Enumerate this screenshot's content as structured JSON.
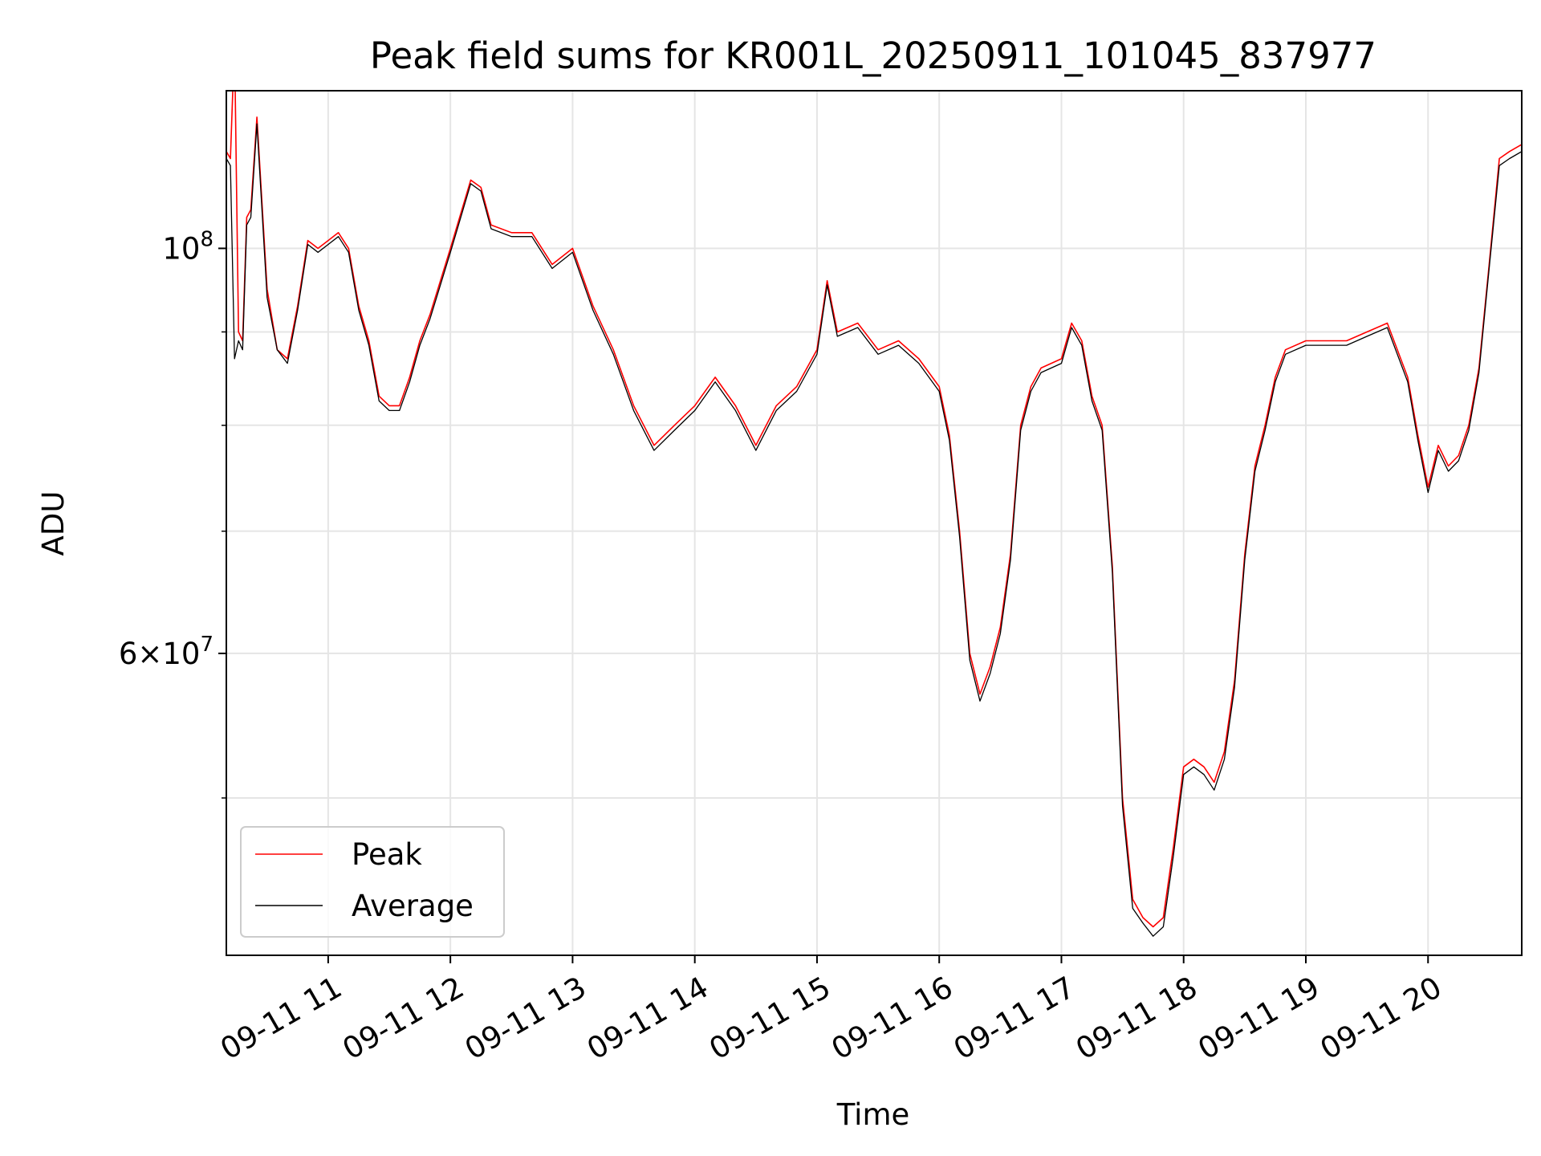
{
  "chart_data": {
    "type": "line",
    "title": "Peak field sums for KR001L_20250911_101045_837977",
    "xlabel": "Time",
    "ylabel": "ADU",
    "yscale": "log",
    "ylim": [
      41000000,
      122000000
    ],
    "xlim": [
      "09-11 10:10",
      "09-11 20:46"
    ],
    "grid": true,
    "legend_position": "lower-left",
    "x_ticks": [
      "09-11 11",
      "09-11 12",
      "09-11 13",
      "09-11 14",
      "09-11 15",
      "09-11 16",
      "09-11 17",
      "09-11 18",
      "09-11 19",
      "09-11 20"
    ],
    "y_ticks": [
      {
        "label_base": "10",
        "label_exp": "8",
        "label_prefix": "",
        "value": 100000000
      },
      {
        "label_base": "10",
        "label_exp": "7",
        "label_prefix": "6×",
        "value": 60000000
      }
    ],
    "y_minor_ticks": [
      50000000,
      70000000,
      80000000,
      90000000
    ],
    "series": [
      {
        "name": "Peak",
        "color": "#ff0000",
        "x": [
          "09-11 10:10",
          "09-11 10:12",
          "09-11 10:14",
          "09-11 10:16",
          "09-11 10:18",
          "09-11 10:20",
          "09-11 10:22",
          "09-11 10:25",
          "09-11 10:30",
          "09-11 10:35",
          "09-11 10:40",
          "09-11 10:45",
          "09-11 10:50",
          "09-11 10:55",
          "09-11 11:00",
          "09-11 11:05",
          "09-11 11:10",
          "09-11 11:15",
          "09-11 11:20",
          "09-11 11:25",
          "09-11 11:30",
          "09-11 11:35",
          "09-11 11:40",
          "09-11 11:45",
          "09-11 11:50",
          "09-11 12:00",
          "09-11 12:10",
          "09-11 12:15",
          "09-11 12:20",
          "09-11 12:30",
          "09-11 12:40",
          "09-11 12:50",
          "09-11 13:00",
          "09-11 13:10",
          "09-11 13:20",
          "09-11 13:30",
          "09-11 13:40",
          "09-11 13:50",
          "09-11 14:00",
          "09-11 14:10",
          "09-11 14:20",
          "09-11 14:30",
          "09-11 14:40",
          "09-11 14:50",
          "09-11 15:00",
          "09-11 15:05",
          "09-11 15:10",
          "09-11 15:20",
          "09-11 15:30",
          "09-11 15:40",
          "09-11 15:50",
          "09-11 16:00",
          "09-11 16:05",
          "09-11 16:10",
          "09-11 16:15",
          "09-11 16:20",
          "09-11 16:25",
          "09-11 16:30",
          "09-11 16:35",
          "09-11 16:40",
          "09-11 16:45",
          "09-11 16:50",
          "09-11 17:00",
          "09-11 17:05",
          "09-11 17:10",
          "09-11 17:15",
          "09-11 17:20",
          "09-11 17:25",
          "09-11 17:30",
          "09-11 17:35",
          "09-11 17:40",
          "09-11 17:45",
          "09-11 17:50",
          "09-11 17:55",
          "09-11 18:00",
          "09-11 18:05",
          "09-11 18:10",
          "09-11 18:15",
          "09-11 18:20",
          "09-11 18:25",
          "09-11 18:30",
          "09-11 18:35",
          "09-11 18:40",
          "09-11 18:45",
          "09-11 18:50",
          "09-11 19:00",
          "09-11 19:10",
          "09-11 19:20",
          "09-11 19:30",
          "09-11 19:40",
          "09-11 19:50",
          "09-11 19:55",
          "09-11 20:00",
          "09-11 20:05",
          "09-11 20:10",
          "09-11 20:15",
          "09-11 20:20",
          "09-11 20:25",
          "09-11 20:30",
          "09-11 20:35",
          "09-11 20:40",
          "09-11 20:46"
        ],
        "values": [
          113000000,
          112000000,
          130000000,
          90000000,
          89000000,
          104000000,
          105000000,
          118000000,
          95000000,
          88000000,
          87000000,
          93000000,
          101000000,
          100000000,
          101000000,
          102000000,
          100000000,
          93000000,
          89000000,
          83000000,
          82000000,
          82000000,
          85000000,
          89000000,
          92000000,
          100000000,
          109000000,
          108000000,
          103000000,
          102000000,
          102000000,
          98000000,
          100000000,
          93000000,
          88000000,
          82000000,
          78000000,
          80000000,
          82000000,
          85000000,
          82000000,
          78000000,
          82000000,
          84000000,
          88000000,
          96000000,
          90000000,
          91000000,
          88000000,
          89000000,
          87000000,
          84000000,
          79000000,
          70000000,
          60000000,
          57000000,
          59000000,
          62000000,
          68000000,
          80000000,
          84000000,
          86000000,
          87000000,
          91000000,
          89000000,
          83000000,
          80000000,
          67000000,
          50000000,
          44000000,
          43000000,
          42500000,
          43000000,
          47000000,
          52000000,
          52500000,
          52000000,
          51000000,
          53000000,
          58000000,
          68000000,
          76000000,
          80000000,
          85000000,
          88000000,
          89000000,
          89000000,
          89000000,
          90000000,
          91000000,
          85000000,
          79000000,
          74000000,
          78000000,
          76000000,
          77000000,
          80000000,
          86000000,
          98000000,
          112000000,
          113000000,
          114000000
        ]
      },
      {
        "name": "Average",
        "color": "#000000",
        "x": [
          "09-11 10:10",
          "09-11 10:12",
          "09-11 10:14",
          "09-11 10:16",
          "09-11 10:18",
          "09-11 10:20",
          "09-11 10:22",
          "09-11 10:25",
          "09-11 10:30",
          "09-11 10:35",
          "09-11 10:40",
          "09-11 10:45",
          "09-11 10:50",
          "09-11 10:55",
          "09-11 11:00",
          "09-11 11:05",
          "09-11 11:10",
          "09-11 11:15",
          "09-11 11:20",
          "09-11 11:25",
          "09-11 11:30",
          "09-11 11:35",
          "09-11 11:40",
          "09-11 11:45",
          "09-11 11:50",
          "09-11 12:00",
          "09-11 12:10",
          "09-11 12:15",
          "09-11 12:20",
          "09-11 12:30",
          "09-11 12:40",
          "09-11 12:50",
          "09-11 13:00",
          "09-11 13:10",
          "09-11 13:20",
          "09-11 13:30",
          "09-11 13:40",
          "09-11 13:50",
          "09-11 14:00",
          "09-11 14:10",
          "09-11 14:20",
          "09-11 14:30",
          "09-11 14:40",
          "09-11 14:50",
          "09-11 15:00",
          "09-11 15:05",
          "09-11 15:10",
          "09-11 15:20",
          "09-11 15:30",
          "09-11 15:40",
          "09-11 15:50",
          "09-11 16:00",
          "09-11 16:05",
          "09-11 16:10",
          "09-11 16:15",
          "09-11 16:20",
          "09-11 16:25",
          "09-11 16:30",
          "09-11 16:35",
          "09-11 16:40",
          "09-11 16:45",
          "09-11 16:50",
          "09-11 17:00",
          "09-11 17:05",
          "09-11 17:10",
          "09-11 17:15",
          "09-11 17:20",
          "09-11 17:25",
          "09-11 17:30",
          "09-11 17:35",
          "09-11 17:40",
          "09-11 17:45",
          "09-11 17:50",
          "09-11 17:55",
          "09-11 18:00",
          "09-11 18:05",
          "09-11 18:10",
          "09-11 18:15",
          "09-11 18:20",
          "09-11 18:25",
          "09-11 18:30",
          "09-11 18:35",
          "09-11 18:40",
          "09-11 18:45",
          "09-11 18:50",
          "09-11 19:00",
          "09-11 19:10",
          "09-11 19:20",
          "09-11 19:30",
          "09-11 19:40",
          "09-11 19:50",
          "09-11 19:55",
          "09-11 20:00",
          "09-11 20:05",
          "09-11 20:10",
          "09-11 20:15",
          "09-11 20:20",
          "09-11 20:25",
          "09-11 20:30",
          "09-11 20:35",
          "09-11 20:40",
          "09-11 20:46"
        ],
        "values": [
          112000000,
          111000000,
          87000000,
          89000000,
          88000000,
          103000000,
          104000000,
          117000000,
          94000000,
          88000000,
          86500000,
          92500000,
          100500000,
          99500000,
          100500000,
          101500000,
          99500000,
          92500000,
          88500000,
          82500000,
          81500000,
          81500000,
          84500000,
          88500000,
          91500000,
          99500000,
          108500000,
          107500000,
          102500000,
          101500000,
          101500000,
          97500000,
          99500000,
          92500000,
          87500000,
          81500000,
          77500000,
          79500000,
          81500000,
          84500000,
          81500000,
          77500000,
          81500000,
          83500000,
          87500000,
          95500000,
          89500000,
          90500000,
          87500000,
          88500000,
          86500000,
          83500000,
          78500000,
          69500000,
          59500000,
          56500000,
          58500000,
          61500000,
          67500000,
          79500000,
          83500000,
          85500000,
          86500000,
          90500000,
          88500000,
          82500000,
          79500000,
          66500000,
          49500000,
          43500000,
          42700000,
          42000000,
          42500000,
          46500000,
          51500000,
          52000000,
          51500000,
          50500000,
          52500000,
          57500000,
          67500000,
          75500000,
          79500000,
          84500000,
          87500000,
          88500000,
          88500000,
          88500000,
          89500000,
          90500000,
          84500000,
          78500000,
          73500000,
          77500000,
          75500000,
          76500000,
          79500000,
          85500000,
          97500000,
          111000000,
          112000000,
          113000000
        ]
      }
    ]
  }
}
